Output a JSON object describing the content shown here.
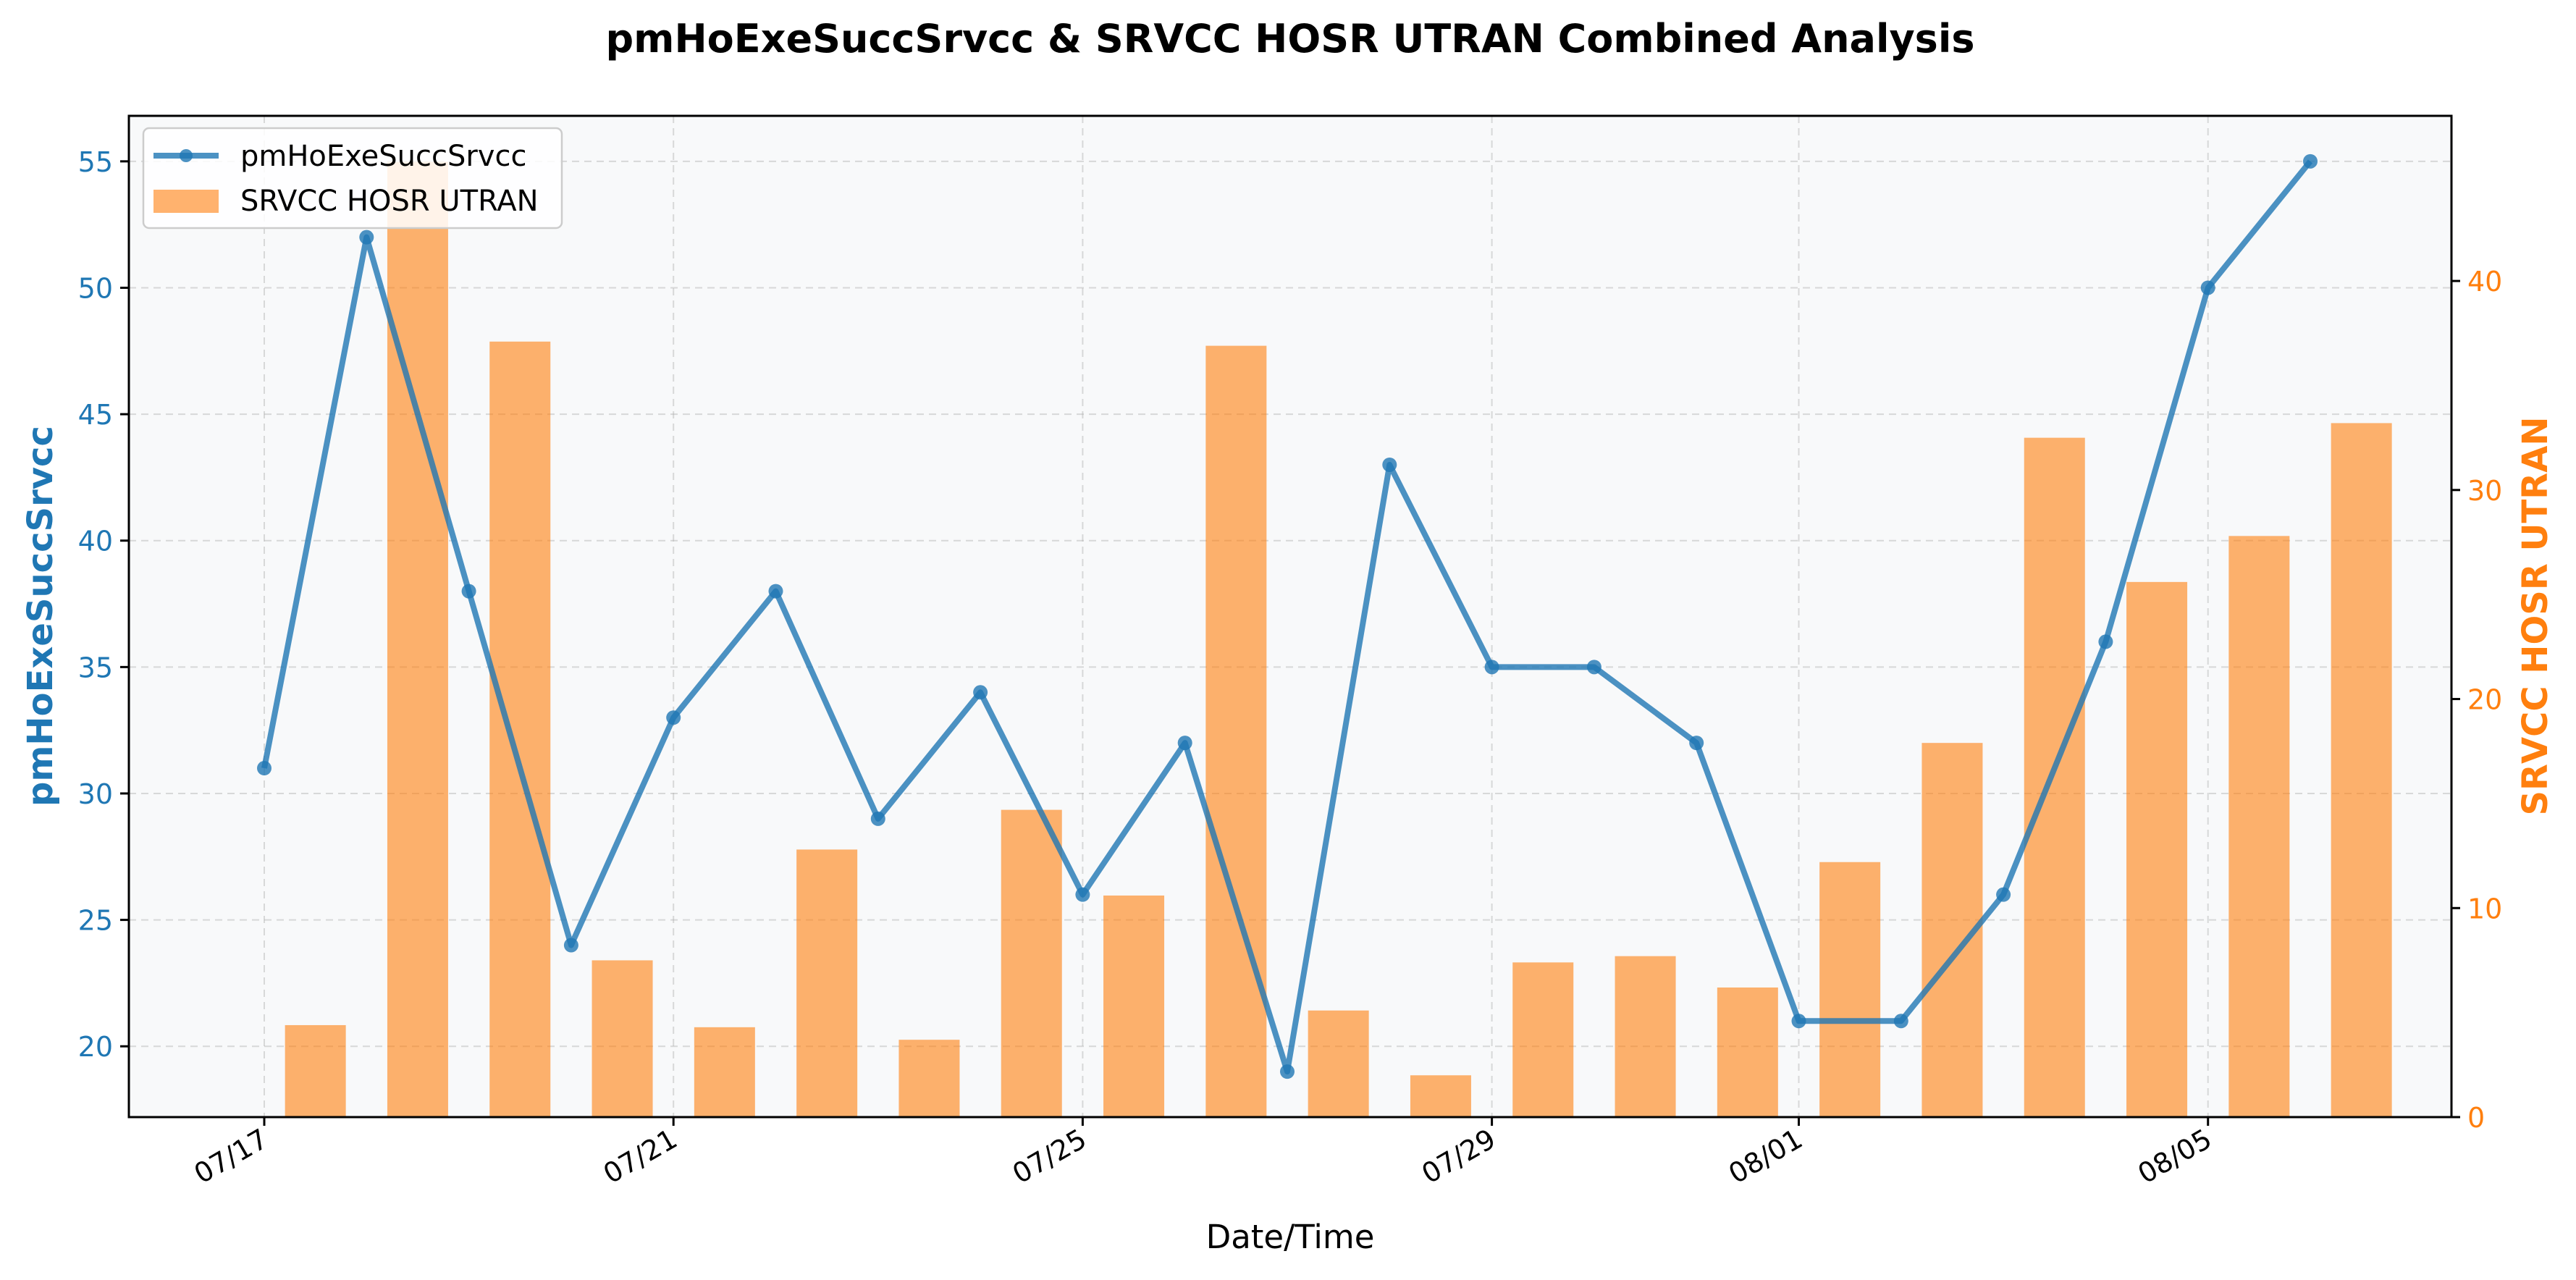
{
  "chart_data": {
    "type": "bar+line",
    "title": "pmHoExeSuccSrvcc & SRVCC HOSR UTRAN Combined Analysis",
    "xlabel": "Date/Time",
    "ylabel_left": "pmHoExeSuccSrvcc",
    "ylabel_right": "SRVCC HOSR UTRAN",
    "dates": [
      "07/17",
      "07/18",
      "07/19",
      "07/20",
      "07/21",
      "07/22",
      "07/23",
      "07/24",
      "07/25",
      "07/26",
      "07/27",
      "07/28",
      "07/29",
      "07/30",
      "07/31",
      "08/01",
      "08/02",
      "08/03",
      "08/04",
      "08/05",
      "08/06"
    ],
    "x_tick_labels": [
      "07/17",
      "07/21",
      "07/25",
      "07/29",
      "08/01",
      "08/05"
    ],
    "left_axis": {
      "ylim": [
        17.2,
        56.8
      ],
      "ticks": [
        20,
        25,
        30,
        35,
        40,
        45,
        50,
        55
      ],
      "color": "#1f77b4"
    },
    "right_axis": {
      "ylim": [
        0,
        47.9
      ],
      "ticks": [
        0,
        10,
        20,
        30,
        40
      ],
      "color": "#ff7f0e"
    },
    "series": [
      {
        "name": "pmHoExeSuccSrvcc",
        "kind": "line",
        "axis": "left",
        "color": "#1f77b4",
        "values": [
          31,
          52,
          38,
          24,
          33,
          38,
          29,
          34,
          26,
          32,
          19,
          43,
          35,
          35,
          32,
          21,
          21,
          26,
          36,
          50,
          55
        ]
      },
      {
        "name": "SRVCC HOSR UTRAN",
        "kind": "bar",
        "axis": "right",
        "color": "#ff7f0e",
        "values": [
          4.4,
          45.7,
          37.1,
          7.5,
          4.3,
          12.8,
          3.7,
          14.7,
          10.6,
          36.9,
          5.1,
          2.0,
          7.4,
          7.7,
          6.2,
          12.2,
          17.9,
          32.5,
          25.6,
          27.8,
          33.2
        ]
      }
    ],
    "legend_position": "upper-left",
    "grid": true
  }
}
